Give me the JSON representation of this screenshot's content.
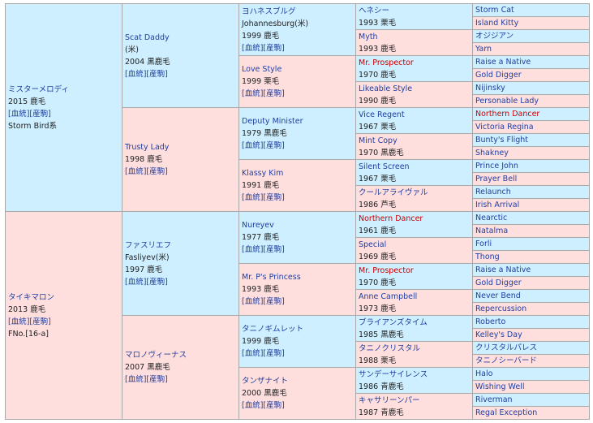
{
  "pedigree": {
    "generations": [
      [
        {
          "name": "ミスターメロディ",
          "lines": [
            "2015 鹿毛"
          ],
          "links": [
            "[血統]",
            "[産駒]"
          ],
          "note": "Storm Bird系"
        },
        {
          "name": "タイキマロン",
          "lines": [
            "2013 鹿毛"
          ],
          "links": [
            "[血統]",
            "[産駒]"
          ],
          "note": "FNo.[16-a]"
        }
      ],
      [
        {
          "name": "Scat Daddy",
          "lines": [
            "(米)",
            "2004 黒鹿毛"
          ],
          "links": [
            "[血統]",
            "[産駒]"
          ]
        },
        {
          "name": "Trusty Lady",
          "lines": [
            "1998 鹿毛"
          ],
          "links": [
            "[血統]",
            "[産駒]"
          ]
        },
        {
          "name": "ファスリエフ",
          "lines": [
            "Fasliyev(米)",
            "1997 鹿毛"
          ],
          "links": [
            "[血統]",
            "[産駒]"
          ]
        },
        {
          "name": "マロノヴィーナス",
          "lines": [
            "2007 黒鹿毛"
          ],
          "links": [
            "[血統]",
            "[産駒]"
          ]
        }
      ],
      [
        {
          "name": "ヨハネスブルグ",
          "lines": [
            "Johannesburg(米)",
            "1999 鹿毛"
          ],
          "links": [
            "[血統]",
            "[産駒]"
          ]
        },
        {
          "name": "Love Style",
          "lines": [
            "1999 栗毛"
          ],
          "links": [
            "[血統]",
            "[産駒]"
          ]
        },
        {
          "name": "Deputy Minister",
          "lines": [
            "1979 黒鹿毛"
          ],
          "links": [
            "[血統]",
            "[産駒]"
          ]
        },
        {
          "name": "Klassy Kim",
          "lines": [
            "1991 鹿毛"
          ],
          "links": [
            "[血統]",
            "[産駒]"
          ]
        },
        {
          "name": "Nureyev",
          "lines": [
            "1977 鹿毛"
          ],
          "links": [
            "[血統]",
            "[産駒]"
          ]
        },
        {
          "name": "Mr. P's Princess",
          "lines": [
            "1993 鹿毛"
          ],
          "links": [
            "[血統]",
            "[産駒]"
          ]
        },
        {
          "name": "タニノギムレット",
          "lines": [
            "1999 鹿毛"
          ],
          "links": [
            "[血統]",
            "[産駒]"
          ]
        },
        {
          "name": "タンザナイト",
          "lines": [
            "2000 黒鹿毛"
          ],
          "links": [
            "[血統]",
            "[産駒]"
          ]
        }
      ],
      [
        {
          "name": "ヘネシー",
          "lines": [
            "1993 栗毛"
          ]
        },
        {
          "name": "Myth",
          "lines": [
            "1993 鹿毛"
          ]
        },
        {
          "name": "Mr. Prospector",
          "lines": [
            "1970 鹿毛"
          ],
          "color": "#cc0000"
        },
        {
          "name": "Likeable Style",
          "lines": [
            "1990 鹿毛"
          ]
        },
        {
          "name": "Vice Regent",
          "lines": [
            "1967 栗毛"
          ]
        },
        {
          "name": "Mint Copy",
          "lines": [
            "1970 黒鹿毛"
          ]
        },
        {
          "name": "Silent Screen",
          "lines": [
            "1967 栗毛"
          ]
        },
        {
          "name": "クールアライヴァル",
          "lines": [
            "1986 芦毛"
          ]
        },
        {
          "name": "Northern Dancer",
          "lines": [
            "1961 鹿毛"
          ],
          "color": "#cc0000"
        },
        {
          "name": "Special",
          "lines": [
            "1969 鹿毛"
          ]
        },
        {
          "name": "Mr. Prospector",
          "lines": [
            "1970 鹿毛"
          ],
          "color": "#cc0000"
        },
        {
          "name": "Anne Campbell",
          "lines": [
            "1973 鹿毛"
          ]
        },
        {
          "name": "ブライアンズタイム",
          "lines": [
            "1985 黒鹿毛"
          ]
        },
        {
          "name": "タニノクリスタル",
          "lines": [
            "1988 栗毛"
          ]
        },
        {
          "name": "サンデーサイレンス",
          "lines": [
            "1986 青鹿毛"
          ]
        },
        {
          "name": "キャサリーンパー",
          "lines": [
            "1987 青鹿毛"
          ]
        }
      ],
      [
        {
          "name": "Storm Cat"
        },
        {
          "name": "Island Kitty"
        },
        {
          "name": "オジジアン"
        },
        {
          "name": "Yarn"
        },
        {
          "name": "Raise a Native"
        },
        {
          "name": "Gold Digger"
        },
        {
          "name": "Nijinsky"
        },
        {
          "name": "Personable Lady"
        },
        {
          "name": "Northern Dancer",
          "color": "#cc0000"
        },
        {
          "name": "Victoria Regina"
        },
        {
          "name": "Bunty's Flight"
        },
        {
          "name": "Shakney"
        },
        {
          "name": "Prince John"
        },
        {
          "name": "Prayer Bell"
        },
        {
          "name": "Relaunch"
        },
        {
          "name": "Irish Arrival"
        },
        {
          "name": "Nearctic"
        },
        {
          "name": "Natalma"
        },
        {
          "name": "Forli"
        },
        {
          "name": "Thong"
        },
        {
          "name": "Raise a Native"
        },
        {
          "name": "Gold Digger"
        },
        {
          "name": "Never Bend"
        },
        {
          "name": "Repercussion"
        },
        {
          "name": "Roberto"
        },
        {
          "name": "Kelley's Day"
        },
        {
          "name": "クリスタルパレス"
        },
        {
          "name": "タニノシーバード"
        },
        {
          "name": "Halo"
        },
        {
          "name": "Wishing Well"
        },
        {
          "name": "Riverman"
        },
        {
          "name": "Regal Exception"
        }
      ]
    ]
  }
}
